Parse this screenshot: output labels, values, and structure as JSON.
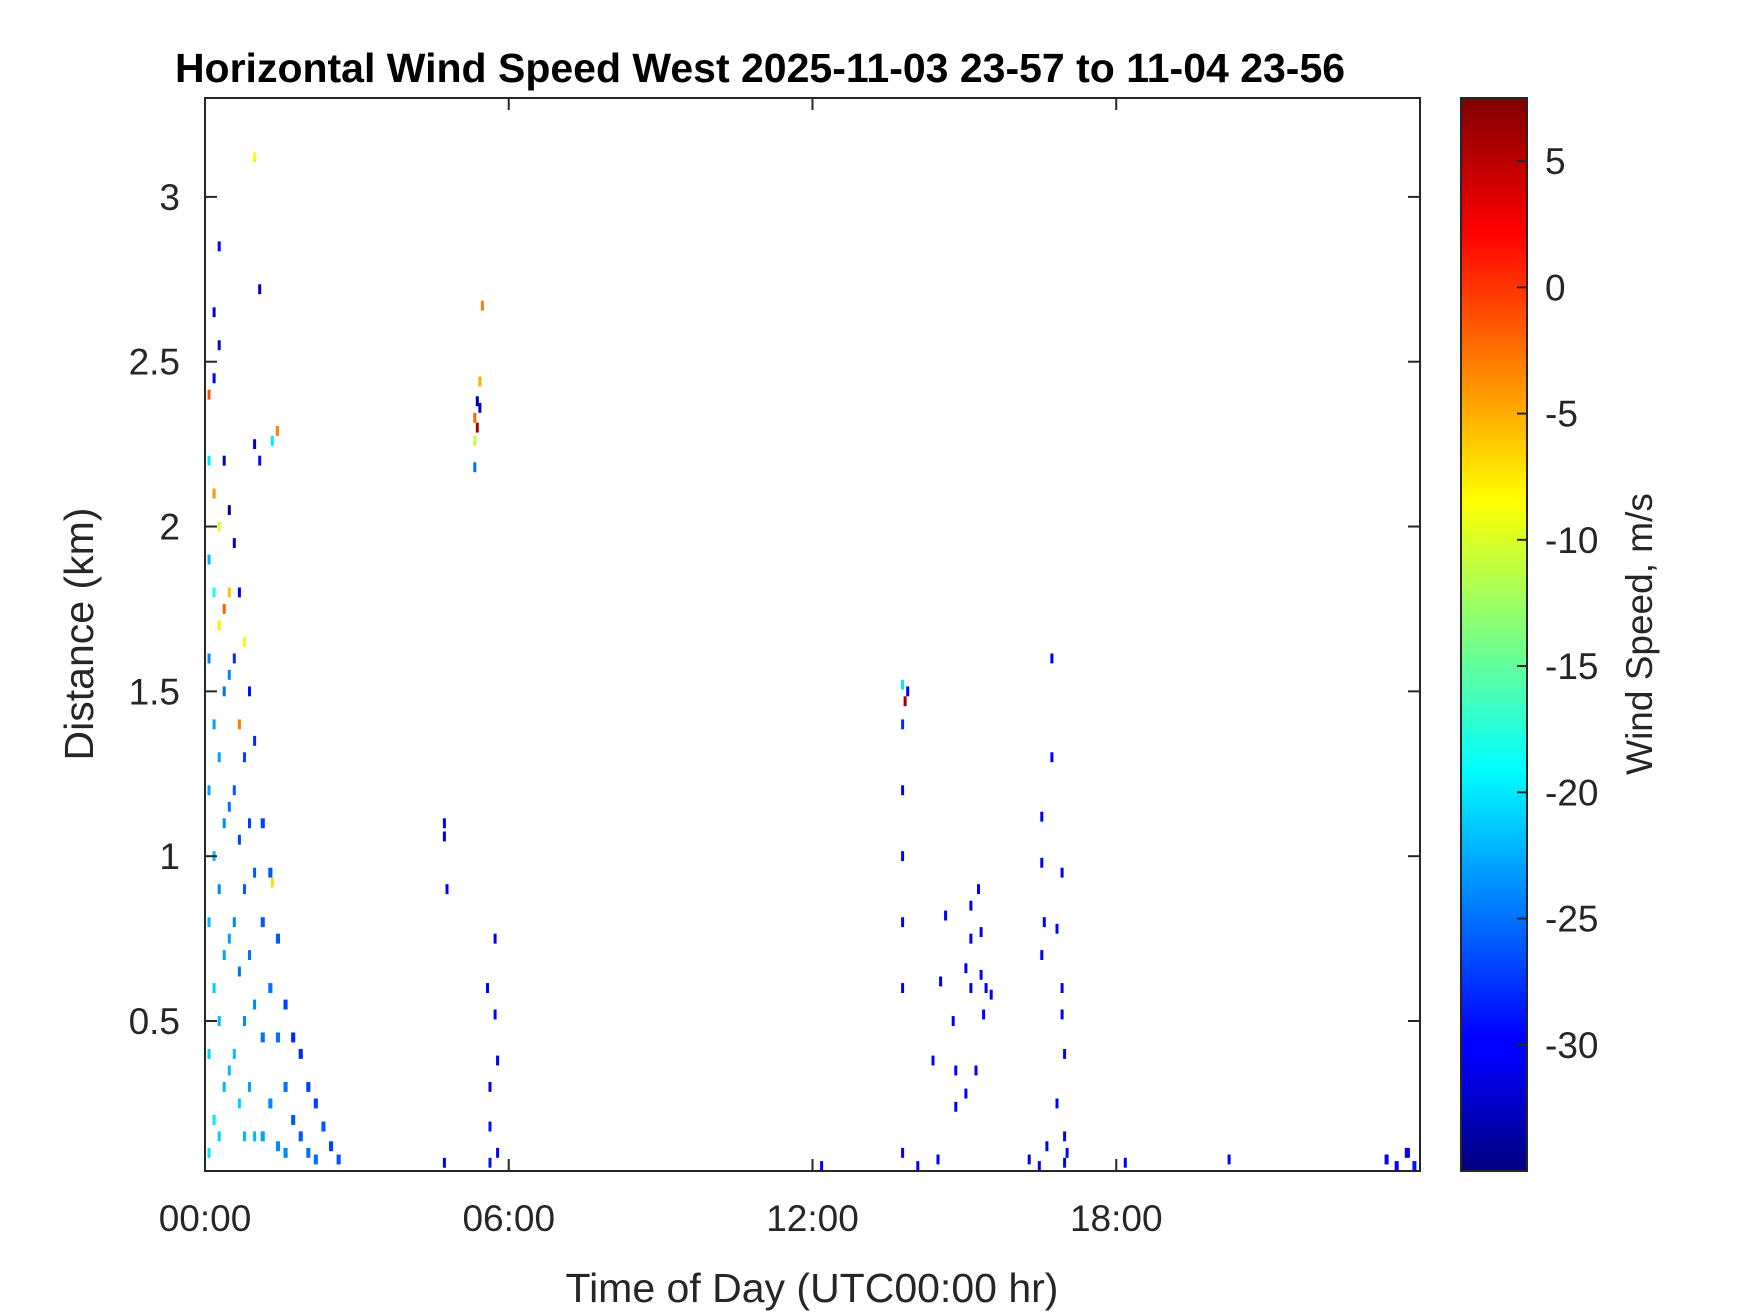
{
  "chart_data": {
    "type": "heatmap",
    "title": "Horizontal Wind Speed West 2025-11-03 23-57 to 11-04 23-56",
    "xlabel": "Time of Day (UTC00:00 hr)",
    "ylabel": "Distance (km)",
    "colorbar_label": "Wind Speed, m/s",
    "x_ticks": [
      {
        "value": 0,
        "label": "00:00"
      },
      {
        "value": 6,
        "label": "06:00"
      },
      {
        "value": 12,
        "label": "12:00"
      },
      {
        "value": 18,
        "label": "18:00"
      }
    ],
    "y_ticks": [
      {
        "value": 0.5,
        "label": "0.5"
      },
      {
        "value": 1,
        "label": "1"
      },
      {
        "value": 1.5,
        "label": "1.5"
      },
      {
        "value": 2,
        "label": "2"
      },
      {
        "value": 2.5,
        "label": "2.5"
      },
      {
        "value": 3,
        "label": "3"
      }
    ],
    "colorbar_ticks": [
      {
        "value": 5,
        "label": "5"
      },
      {
        "value": 0,
        "label": "0"
      },
      {
        "value": -5,
        "label": "-5"
      },
      {
        "value": -10,
        "label": "-10"
      },
      {
        "value": -15,
        "label": "-15"
      },
      {
        "value": -20,
        "label": "-20"
      },
      {
        "value": -25,
        "label": "-25"
      },
      {
        "value": -30,
        "label": "-30"
      }
    ],
    "xlim": [
      0,
      24
    ],
    "ylim": [
      0.045,
      3.3
    ],
    "clim": [
      -35,
      7.5
    ],
    "colormap": "jet",
    "grid": false,
    "cells": [
      [
        0.05,
        0.06,
        2.4,
        -1
      ],
      [
        0.05,
        0.06,
        2.2,
        -20
      ],
      [
        0.05,
        0.06,
        1.9,
        -22
      ],
      [
        0.05,
        0.06,
        1.6,
        -24
      ],
      [
        0.05,
        0.06,
        1.2,
        -23
      ],
      [
        0.05,
        0.06,
        0.8,
        -22
      ],
      [
        0.05,
        0.06,
        0.4,
        -21
      ],
      [
        0.05,
        0.06,
        0.1,
        -20
      ],
      [
        0.15,
        0.06,
        2.1,
        -4
      ],
      [
        0.15,
        0.06,
        1.8,
        -18
      ],
      [
        0.15,
        0.06,
        1.4,
        -23
      ],
      [
        0.15,
        0.06,
        1.0,
        -22
      ],
      [
        0.15,
        0.06,
        0.6,
        -21
      ],
      [
        0.15,
        0.06,
        0.2,
        -20
      ],
      [
        0.15,
        0.06,
        2.65,
        -31
      ],
      [
        0.15,
        0.06,
        2.45,
        -30
      ],
      [
        0.25,
        0.06,
        2.85,
        -30
      ],
      [
        0.25,
        0.06,
        2.55,
        -31
      ],
      [
        0.25,
        0.06,
        2.0,
        -10
      ],
      [
        0.25,
        0.06,
        1.7,
        -8
      ],
      [
        0.25,
        0.06,
        1.3,
        -23
      ],
      [
        0.25,
        0.06,
        0.9,
        -24
      ],
      [
        0.25,
        0.06,
        0.5,
        -22
      ],
      [
        0.25,
        0.06,
        0.15,
        -21
      ],
      [
        0.35,
        0.06,
        2.2,
        -32
      ],
      [
        0.35,
        0.06,
        1.75,
        -2
      ],
      [
        0.35,
        0.06,
        1.5,
        -25
      ],
      [
        0.35,
        0.06,
        1.1,
        -24
      ],
      [
        0.35,
        0.06,
        0.7,
        -23
      ],
      [
        0.35,
        0.06,
        0.3,
        -22
      ],
      [
        0.45,
        0.06,
        2.05,
        -34
      ],
      [
        0.45,
        0.06,
        1.8,
        -6
      ],
      [
        0.45,
        0.06,
        1.55,
        -24
      ],
      [
        0.45,
        0.06,
        1.15,
        -25
      ],
      [
        0.45,
        0.06,
        0.75,
        -23
      ],
      [
        0.45,
        0.06,
        0.35,
        -22
      ],
      [
        0.55,
        0.06,
        1.95,
        -31
      ],
      [
        0.55,
        0.06,
        1.6,
        -28
      ],
      [
        0.55,
        0.06,
        1.2,
        -26
      ],
      [
        0.55,
        0.06,
        0.8,
        -24
      ],
      [
        0.55,
        0.06,
        0.4,
        -22
      ],
      [
        0.65,
        0.06,
        1.8,
        -30
      ],
      [
        0.65,
        0.06,
        1.4,
        -3
      ],
      [
        0.65,
        0.06,
        1.05,
        -27
      ],
      [
        0.65,
        0.06,
        0.65,
        -25
      ],
      [
        0.65,
        0.06,
        0.25,
        -21
      ],
      [
        0.75,
        0.06,
        1.65,
        -9
      ],
      [
        0.75,
        0.06,
        1.3,
        -27
      ],
      [
        0.75,
        0.06,
        0.9,
        -26
      ],
      [
        0.75,
        0.06,
        0.5,
        -24
      ],
      [
        0.75,
        0.06,
        0.15,
        -22
      ],
      [
        0.85,
        0.06,
        1.5,
        -29
      ],
      [
        0.85,
        0.06,
        1.1,
        -27
      ],
      [
        0.85,
        0.06,
        0.7,
        -25
      ],
      [
        0.85,
        0.06,
        0.3,
        -23
      ],
      [
        0.95,
        0.06,
        1.35,
        -28
      ],
      [
        0.95,
        0.06,
        0.95,
        -26
      ],
      [
        0.95,
        0.06,
        0.55,
        -24
      ],
      [
        0.95,
        0.06,
        0.15,
        -22
      ],
      [
        0.95,
        0.06,
        3.12,
        -9
      ],
      [
        0.95,
        0.06,
        2.25,
        -31
      ],
      [
        1.1,
        0.08,
        1.1,
        -27
      ],
      [
        1.1,
        0.08,
        0.8,
        -26
      ],
      [
        1.1,
        0.08,
        0.45,
        -25
      ],
      [
        1.1,
        0.08,
        0.15,
        -23
      ],
      [
        1.05,
        0.06,
        2.72,
        -33
      ],
      [
        1.05,
        0.06,
        2.2,
        -29
      ],
      [
        1.25,
        0.08,
        0.95,
        -26
      ],
      [
        1.25,
        0.08,
        0.6,
        -25
      ],
      [
        1.25,
        0.08,
        0.25,
        -24
      ],
      [
        1.3,
        0.06,
        0.92,
        -7
      ],
      [
        1.3,
        0.06,
        2.26,
        -20
      ],
      [
        1.4,
        0.06,
        2.29,
        -3
      ],
      [
        1.4,
        0.08,
        0.75,
        -26
      ],
      [
        1.4,
        0.08,
        0.45,
        -25
      ],
      [
        1.4,
        0.08,
        0.12,
        -24
      ],
      [
        1.55,
        0.08,
        0.55,
        -27
      ],
      [
        1.55,
        0.08,
        0.3,
        -25
      ],
      [
        1.55,
        0.08,
        0.1,
        -24
      ],
      [
        1.7,
        0.08,
        0.45,
        -28
      ],
      [
        1.7,
        0.08,
        0.2,
        -26
      ],
      [
        1.85,
        0.08,
        0.4,
        -28
      ],
      [
        1.85,
        0.08,
        0.15,
        -26
      ],
      [
        2.0,
        0.08,
        0.3,
        -27
      ],
      [
        2.0,
        0.08,
        0.1,
        -25
      ],
      [
        2.15,
        0.08,
        0.25,
        -27
      ],
      [
        2.15,
        0.08,
        0.08,
        -25
      ],
      [
        2.3,
        0.08,
        0.18,
        -26
      ],
      [
        2.45,
        0.08,
        0.12,
        -27
      ],
      [
        2.6,
        0.08,
        0.08,
        -26
      ],
      [
        4.7,
        0.05,
        1.1,
        -31
      ],
      [
        4.7,
        0.05,
        1.06,
        -31
      ],
      [
        4.75,
        0.05,
        0.9,
        -30
      ],
      [
        4.7,
        0.05,
        0.07,
        -30
      ],
      [
        5.3,
        0.05,
        2.18,
        -25
      ],
      [
        5.3,
        0.05,
        2.26,
        -11
      ],
      [
        5.3,
        0.05,
        2.33,
        -2
      ],
      [
        5.35,
        0.05,
        2.38,
        -34
      ],
      [
        5.35,
        0.05,
        2.3,
        6
      ],
      [
        5.4,
        0.05,
        2.44,
        -5
      ],
      [
        5.45,
        0.05,
        2.67,
        -3
      ],
      [
        5.4,
        0.05,
        2.36,
        -32
      ],
      [
        5.55,
        0.05,
        0.6,
        -30
      ],
      [
        5.6,
        0.05,
        0.3,
        -30
      ],
      [
        5.6,
        0.05,
        0.18,
        -29
      ],
      [
        5.6,
        0.05,
        0.07,
        -29
      ],
      [
        5.7,
        0.05,
        0.75,
        -30
      ],
      [
        5.7,
        0.05,
        0.52,
        -30
      ],
      [
        5.75,
        0.05,
        0.38,
        -30
      ],
      [
        5.75,
        0.05,
        0.1,
        -30
      ],
      [
        13.75,
        0.05,
        1.52,
        -20
      ],
      [
        13.75,
        0.05,
        1.4,
        -28
      ],
      [
        13.8,
        0.05,
        1.47,
        6
      ],
      [
        13.85,
        0.05,
        1.5,
        -30
      ],
      [
        13.75,
        0.05,
        1.2,
        -30
      ],
      [
        13.75,
        0.05,
        1.0,
        -30
      ],
      [
        13.75,
        0.05,
        0.8,
        -30
      ],
      [
        13.75,
        0.05,
        0.6,
        -30
      ],
      [
        13.75,
        0.05,
        0.1,
        -30
      ],
      [
        14.6,
        0.05,
        0.82,
        -30
      ],
      [
        14.5,
        0.05,
        0.62,
        -30
      ],
      [
        14.35,
        0.05,
        0.38,
        -30
      ],
      [
        14.8,
        0.05,
        0.24,
        -30
      ],
      [
        14.75,
        0.05,
        0.5,
        -30
      ],
      [
        14.8,
        0.05,
        0.35,
        -30
      ],
      [
        15.1,
        0.05,
        0.85,
        -30
      ],
      [
        15.1,
        0.05,
        0.75,
        -30
      ],
      [
        15.0,
        0.05,
        0.66,
        -30
      ],
      [
        15.25,
        0.05,
        0.9,
        -30
      ],
      [
        15.3,
        0.05,
        0.77,
        -30
      ],
      [
        15.3,
        0.05,
        0.64,
        -30
      ],
      [
        15.4,
        0.05,
        0.6,
        -30
      ],
      [
        15.5,
        0.05,
        0.58,
        -30
      ],
      [
        15.35,
        0.05,
        0.52,
        -30
      ],
      [
        15.1,
        0.05,
        0.6,
        -30
      ],
      [
        15.2,
        0.05,
        0.35,
        -30
      ],
      [
        15.0,
        0.05,
        0.28,
        -30
      ],
      [
        16.5,
        0.05,
        1.12,
        -30
      ],
      [
        16.5,
        0.05,
        0.98,
        -30
      ],
      [
        16.55,
        0.05,
        0.8,
        -30
      ],
      [
        16.5,
        0.05,
        0.7,
        -30
      ],
      [
        16.7,
        0.05,
        1.6,
        -30
      ],
      [
        16.7,
        0.05,
        1.3,
        -30
      ],
      [
        16.8,
        0.05,
        0.78,
        -30
      ],
      [
        16.9,
        0.05,
        0.95,
        -30
      ],
      [
        16.9,
        0.05,
        0.6,
        -30
      ],
      [
        16.9,
        0.05,
        0.52,
        -30
      ],
      [
        16.8,
        0.05,
        0.25,
        -30
      ],
      [
        16.95,
        0.05,
        0.4,
        -30
      ],
      [
        16.95,
        0.05,
        0.15,
        -30
      ],
      [
        16.25,
        0.05,
        0.08,
        -30
      ],
      [
        16.45,
        0.05,
        0.06,
        -30
      ],
      [
        16.6,
        0.05,
        0.12,
        -30
      ],
      [
        16.95,
        0.05,
        0.07,
        -30
      ],
      [
        17.0,
        0.05,
        0.1,
        -30
      ],
      [
        12.15,
        0.05,
        0.06,
        -30
      ],
      [
        14.05,
        0.05,
        0.06,
        -30
      ],
      [
        14.45,
        0.05,
        0.08,
        -30
      ],
      [
        18.15,
        0.05,
        0.07,
        -30
      ],
      [
        20.2,
        0.05,
        0.08,
        -30
      ],
      [
        23.3,
        0.08,
        0.08,
        -30
      ],
      [
        23.5,
        0.08,
        0.06,
        -30
      ],
      [
        23.7,
        0.1,
        0.1,
        -30
      ],
      [
        23.85,
        0.08,
        0.06,
        -29
      ]
    ]
  }
}
